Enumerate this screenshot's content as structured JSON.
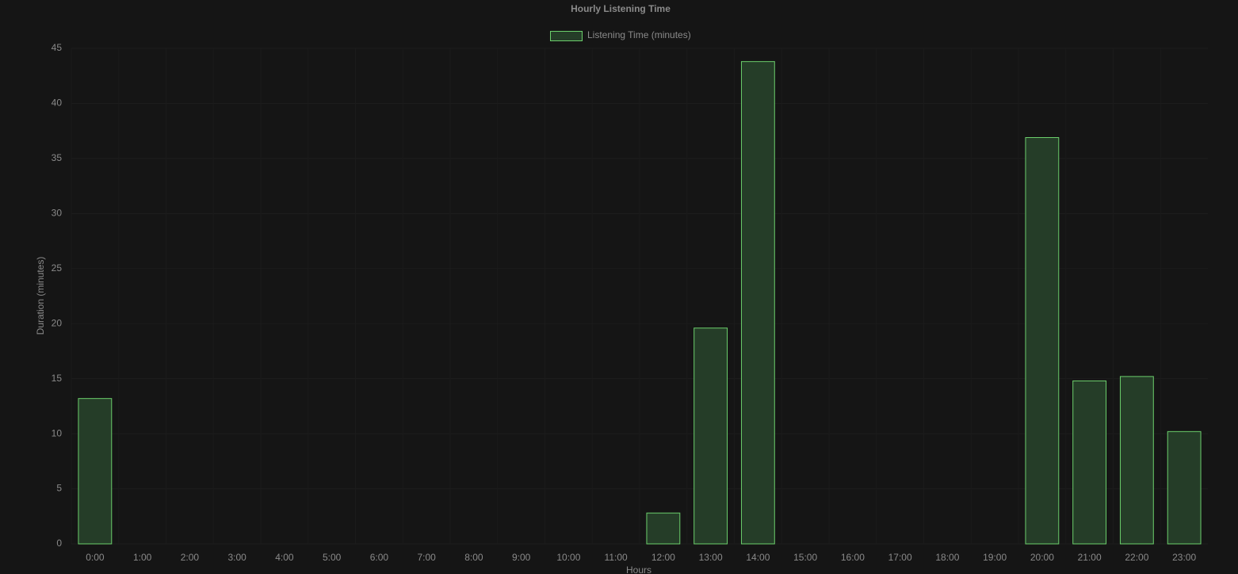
{
  "chart_data": {
    "type": "bar",
    "title": "Hourly Listening Time",
    "x_label": "Hours",
    "y_label": "Duration (minutes)",
    "categories": [
      "0:00",
      "1:00",
      "2:00",
      "3:00",
      "4:00",
      "5:00",
      "6:00",
      "7:00",
      "8:00",
      "9:00",
      "10:00",
      "11:00",
      "12:00",
      "13:00",
      "14:00",
      "15:00",
      "16:00",
      "17:00",
      "18:00",
      "19:00",
      "20:00",
      "21:00",
      "22:00",
      "23:00"
    ],
    "series": [
      {
        "name": "Listening Time (minutes)",
        "color": "#253d28",
        "border_color": "#6ccf6c",
        "values": [
          13.2,
          0,
          0,
          0,
          0,
          0,
          0,
          0,
          0,
          0,
          0,
          0,
          2.8,
          19.6,
          43.8,
          0,
          0,
          0,
          0,
          0,
          36.9,
          14.8,
          15.2,
          10.2
        ]
      }
    ],
    "ylim": [
      0,
      45
    ],
    "yticks": [
      0,
      5,
      10,
      15,
      20,
      25,
      30,
      35,
      40,
      45
    ],
    "grid": true,
    "legend": "top"
  }
}
